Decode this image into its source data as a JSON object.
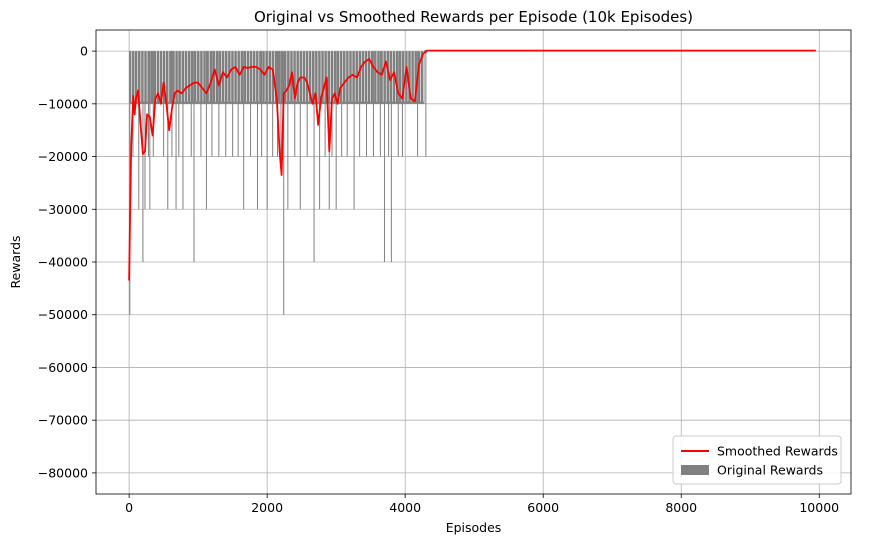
{
  "chart_data": {
    "type": "bar",
    "title": "Original vs Smoothed Rewards per Episode (10k Episodes)",
    "xlabel": "Episodes",
    "ylabel": "Rewards",
    "xlim": [
      -480,
      10460
    ],
    "ylim": [
      -84000,
      4000
    ],
    "x_ticks": [
      0,
      2000,
      4000,
      6000,
      8000,
      10000
    ],
    "x_tick_labels": [
      "0",
      "2000",
      "4000",
      "6000",
      "8000",
      "10000"
    ],
    "y_ticks": [
      0,
      -10000,
      -20000,
      -30000,
      -40000,
      -50000,
      -60000,
      -70000,
      -80000
    ],
    "y_tick_labels": [
      "0",
      "−10000",
      "−20000",
      "−30000",
      "−40000",
      "−50000",
      "−60000",
      "−70000",
      "−80000"
    ],
    "grid": true,
    "legend_position": "lower-right",
    "colors": {
      "smoothed": "#ff0000",
      "original": "#808080",
      "grid": "#b0b0b0"
    },
    "series": [
      {
        "name": "Smoothed Rewards",
        "kind": "line",
        "x": [
          0,
          15,
          30,
          60,
          80,
          100,
          130,
          160,
          200,
          230,
          260,
          300,
          340,
          380,
          420,
          460,
          500,
          540,
          580,
          620,
          660,
          700,
          760,
          820,
          880,
          940,
          1000,
          1060,
          1120,
          1180,
          1240,
          1300,
          1360,
          1420,
          1480,
          1540,
          1600,
          1660,
          1720,
          1780,
          1840,
          1900,
          1960,
          2020,
          2080,
          2140,
          2180,
          2210,
          2240,
          2280,
          2320,
          2360,
          2400,
          2440,
          2480,
          2540,
          2580,
          2620,
          2660,
          2700,
          2740,
          2780,
          2820,
          2860,
          2900,
          2940,
          2980,
          3020,
          3060,
          3120,
          3180,
          3240,
          3300,
          3360,
          3420,
          3480,
          3540,
          3600,
          3660,
          3720,
          3780,
          3840,
          3900,
          3960,
          4020,
          4080,
          4140,
          4200,
          4260,
          4320,
          4380,
          5000,
          6000,
          7000,
          8000,
          9000,
          9950
        ],
        "y": [
          -43500,
          -30000,
          -18000,
          -8500,
          -12000,
          -9000,
          -7500,
          -13000,
          -19500,
          -19000,
          -12000,
          -12500,
          -16000,
          -9000,
          -8000,
          -10000,
          -6000,
          -10000,
          -15000,
          -11000,
          -8000,
          -7500,
          -8000,
          -7000,
          -6500,
          -6000,
          -6000,
          -7000,
          -8000,
          -6000,
          -3500,
          -6500,
          -4000,
          -5000,
          -3500,
          -3000,
          -4500,
          -3000,
          -3200,
          -3000,
          -3000,
          -3500,
          -4500,
          -3000,
          -3500,
          -9000,
          -19000,
          -23500,
          -8000,
          -7500,
          -6500,
          -4000,
          -9000,
          -6000,
          -5000,
          -5000,
          -6000,
          -8000,
          -10000,
          -8000,
          -14000,
          -9000,
          -7000,
          -5000,
          -19000,
          -9000,
          -8000,
          -10000,
          -7000,
          -6000,
          -5000,
          -4500,
          -5000,
          -3000,
          -2000,
          -1500,
          -3000,
          -4000,
          -4500,
          -2000,
          -5500,
          -4000,
          -8000,
          -9000,
          -3000,
          -9000,
          -9500,
          -2500,
          -500,
          100,
          100,
          100,
          100,
          100,
          100,
          100,
          100
        ]
      },
      {
        "name": "Original Rewards",
        "kind": "bar",
        "spike_x": [
          10,
          55,
          90,
          140,
          200,
          230,
          280,
          300,
          350,
          420,
          500,
          560,
          620,
          680,
          720,
          780,
          900,
          940,
          1040,
          1120,
          1200,
          1300,
          1400,
          1500,
          1580,
          1660,
          1760,
          1860,
          1920,
          2000,
          2080,
          2150,
          2200,
          2240,
          2300,
          2400,
          2480,
          2580,
          2680,
          2760,
          2840,
          2900,
          2940,
          3000,
          3080,
          3160,
          3260,
          3340,
          3440,
          3540,
          3640,
          3700,
          3760,
          3800,
          3900,
          3960,
          4060,
          4180,
          4300
        ],
        "spike_y": [
          -50000,
          -20000,
          -10000,
          -30000,
          -40000,
          -30000,
          -20000,
          -30000,
          -20000,
          -10000,
          -20000,
          -30000,
          -20000,
          -30000,
          -20000,
          -30000,
          -20000,
          -40000,
          -20000,
          -30000,
          -20000,
          -20000,
          -20000,
          -20000,
          -20000,
          -30000,
          -20000,
          -30000,
          -20000,
          -30000,
          -20000,
          -20000,
          -20000,
          -50000,
          -30000,
          -20000,
          -30000,
          -20000,
          -40000,
          -30000,
          -20000,
          -30000,
          -20000,
          -30000,
          -20000,
          -20000,
          -30000,
          -20000,
          -20000,
          -20000,
          -20000,
          -40000,
          -20000,
          -40000,
          -20000,
          -20000,
          -10000,
          -20000,
          -20000
        ],
        "band_start": 0,
        "band_end": 4280,
        "band_value": -10000,
        "flat_value": 100,
        "flat_end": 9950
      }
    ]
  }
}
